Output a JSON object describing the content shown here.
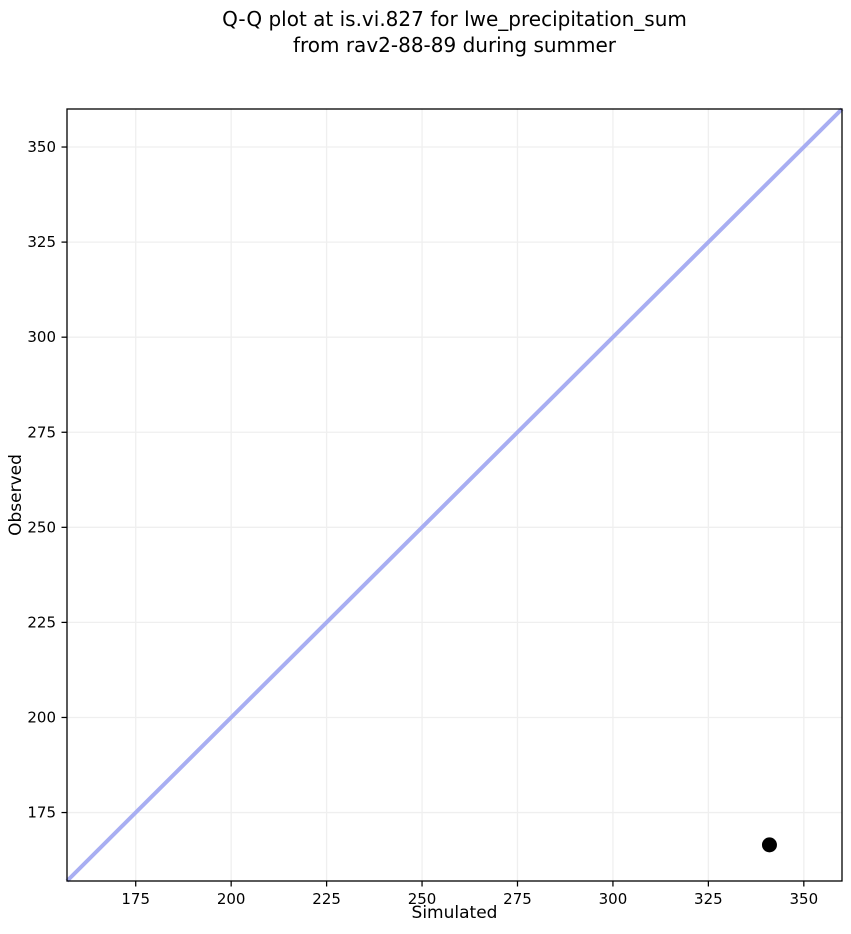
{
  "figure_title": {
    "line1": "Q-Q plot at is.vi.827 for lwe_precipitation_sum",
    "line2": "from rav2-88-89 during summer"
  },
  "chart_data": {
    "type": "scatter",
    "title": "Q-Q plot at is.vi.827 for lwe_precipitation_sum\nfrom rav2-88-89 during summer",
    "xlabel": "Simulated",
    "ylabel": "Observed",
    "xlim": [
      157,
      360
    ],
    "ylim": [
      157,
      360
    ],
    "xticks": [
      175,
      200,
      225,
      250,
      275,
      300,
      325,
      350
    ],
    "yticks": [
      175,
      200,
      225,
      250,
      275,
      300,
      325,
      350
    ],
    "grid": true,
    "grid_color": "#efefef",
    "background_color": "#ffffff",
    "spine_color": "#000000",
    "identity_line": {
      "x": [
        157,
        360
      ],
      "y": [
        157,
        360
      ],
      "color": "#a8aef2",
      "width": 4
    },
    "points": [
      {
        "x": 341,
        "y": 166.5
      }
    ],
    "point_color": "#000000",
    "point_radius": 7.5
  }
}
